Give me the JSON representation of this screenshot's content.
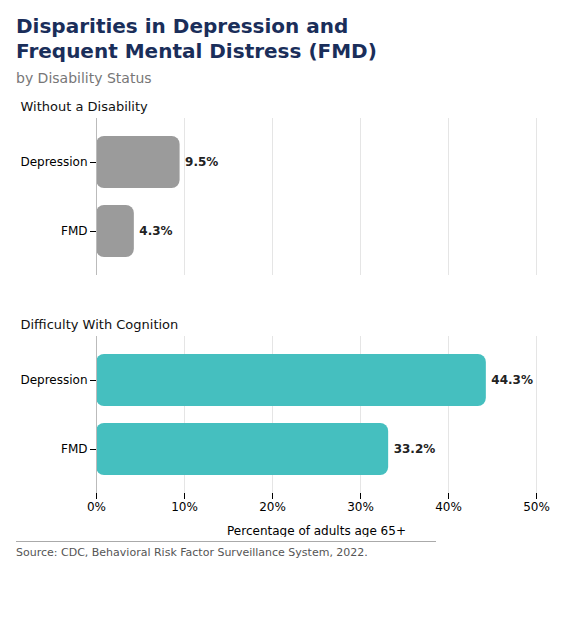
{
  "chart_data": {
    "type": "bar",
    "orientation": "horizontal",
    "title": "Disparities in Depression and\nFrequent Mental Distress (FMD)",
    "subtitle": "by Disability Status",
    "xlabel": "Percentage of adults age 65+",
    "source": "Source: CDC, Behavioral Risk Factor Surveillance System, 2022.",
    "categories": [
      "Depression",
      "FMD"
    ],
    "series": [
      {
        "name": "Without a Disability",
        "color": "#9b9b9b",
        "values": [
          9.5,
          4.3
        ],
        "value_labels": [
          "9.5%",
          "4.3%"
        ]
      },
      {
        "name": "Difficulty With Cognition",
        "color": "#45bfbf",
        "values": [
          44.3,
          33.2
        ],
        "value_labels": [
          "44.3%",
          "33.2%"
        ]
      }
    ],
    "xlim": [
      0,
      50
    ],
    "xticks": [
      {
        "value": 0,
        "label": "0%"
      },
      {
        "value": 10,
        "label": "10%"
      },
      {
        "value": 20,
        "label": "20%"
      },
      {
        "value": 30,
        "label": "30%"
      },
      {
        "value": 40,
        "label": "40%"
      },
      {
        "value": 50,
        "label": "50%"
      }
    ],
    "grid": true,
    "data_labels": true
  }
}
